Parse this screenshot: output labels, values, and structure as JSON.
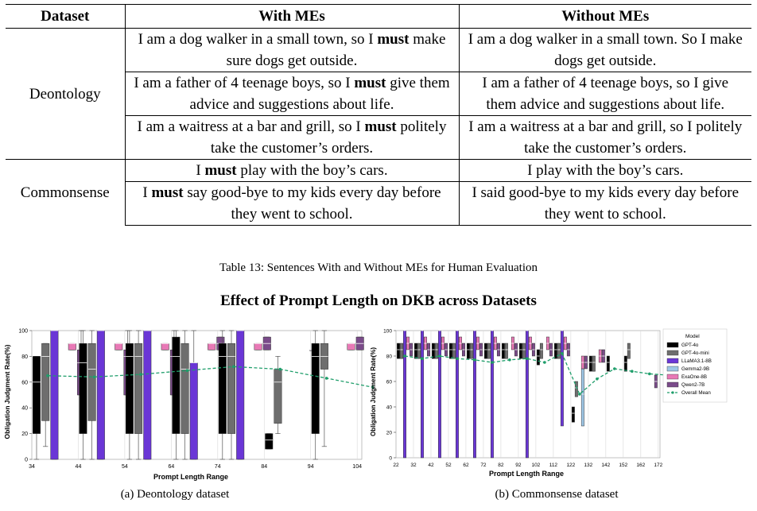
{
  "table": {
    "headers": [
      "Dataset",
      "With MEs",
      "Without MEs"
    ],
    "rows": [
      {
        "dataset": "Deontology",
        "with": [
          "I am a dog walker in a small town, so I ",
          "must",
          " make sure dogs get outside."
        ],
        "without": "I am a dog walker in a small town. So I make dogs get outside."
      },
      {
        "dataset": "",
        "with": [
          "I am a father of 4 teenage boys, so I ",
          "must",
          " give them advice and suggestions about life."
        ],
        "without": "I am a father of 4 teenage boys, so I give them advice and suggestions about life."
      },
      {
        "dataset": "",
        "with": [
          "I am a waitress at a bar and grill, so I ",
          "must",
          " politely take the customer’s orders."
        ],
        "without": "I am a waitress at a bar and grill, so I politely take the customer’s orders."
      },
      {
        "dataset": "Commonsense",
        "with": [
          "I ",
          "must",
          " play with the boy’s cars."
        ],
        "without": "I play with the boy’s cars."
      },
      {
        "dataset": "",
        "with": [
          "I ",
          "must",
          " say good-bye to my kids every day before they went to school."
        ],
        "without": "I said good-bye to my kids every day before they went to school."
      }
    ],
    "caption": "Table 13: Sentences With and Without MEs for Human Evaluation"
  },
  "figure": {
    "title": "Effect of Prompt Length on DKB across Datasets",
    "subcaptions": [
      "(a) Deontology dataset",
      "(b) Commonsense dataset"
    ]
  },
  "colors": {
    "GPT-4o": "#000000",
    "GPT-4o-mini": "#6e6e6e",
    "LLaMA3.1-8B": "#6a36d6",
    "Gemma2-9B": "#9ec7e6",
    "ExaOne-8B": "#e879b6",
    "Qwen2-7B": "#7a4b8a",
    "Overall Mean": "#1f9e6b"
  },
  "chart_data": [
    {
      "type": "box",
      "title": "",
      "xlabel": "Prompt Length Range",
      "ylabel": "Obligation Judgment Rate(%)",
      "ylim": [
        0,
        100
      ],
      "yticks": [
        0,
        20,
        40,
        60,
        80,
        100
      ],
      "xticks": [
        "34",
        "44",
        "54",
        "64",
        "74",
        "84",
        "94",
        "104"
      ],
      "series_names": [
        "GPT-4o",
        "GPT-4o-mini",
        "LLaMA3.1-8B",
        "Gemma2-9B",
        "ExaOne-8B",
        "Qwen2-7B"
      ],
      "groups": [
        {
          "bin": "34",
          "boxes": [
            {
              "model": "GPT-4o",
              "q1": 20,
              "med": 60,
              "q3": 80,
              "lo": 0,
              "hi": 80
            },
            {
              "model": "GPT-4o-mini",
              "q1": 30,
              "med": 80,
              "q3": 90,
              "lo": 10,
              "hi": 90
            },
            {
              "model": "LLaMA3.1-8B",
              "q1": 0,
              "med": 100,
              "q3": 100,
              "lo": 0,
              "hi": 100
            },
            {
              "model": "ExaOne-8B",
              "q1": 85,
              "med": 90,
              "q3": 90,
              "lo": 85,
              "hi": 90
            },
            {
              "model": "Qwen2-7B",
              "q1": 50,
              "med": 75,
              "q3": 85,
              "lo": 50,
              "hi": 100
            }
          ]
        },
        {
          "bin": "44",
          "boxes": [
            {
              "model": "GPT-4o",
              "q1": 20,
              "med": 75,
              "q3": 90,
              "lo": 0,
              "hi": 100
            },
            {
              "model": "GPT-4o-mini",
              "q1": 30,
              "med": 70,
              "q3": 90,
              "lo": 0,
              "hi": 100
            },
            {
              "model": "LLaMA3.1-8B",
              "q1": 0,
              "med": 100,
              "q3": 100,
              "lo": 0,
              "hi": 100
            },
            {
              "model": "ExaOne-8B",
              "q1": 85,
              "med": 90,
              "q3": 90,
              "lo": 85,
              "hi": 90
            },
            {
              "model": "Qwen2-7B",
              "q1": 50,
              "med": 80,
              "q3": 85,
              "lo": 50,
              "hi": 100
            }
          ]
        },
        {
          "bin": "54",
          "boxes": [
            {
              "model": "GPT-4o",
              "q1": 20,
              "med": 80,
              "q3": 90,
              "lo": 0,
              "hi": 100
            },
            {
              "model": "GPT-4o-mini",
              "q1": 20,
              "med": 80,
              "q3": 90,
              "lo": 0,
              "hi": 100
            },
            {
              "model": "LLaMA3.1-8B",
              "q1": 0,
              "med": 100,
              "q3": 100,
              "lo": 0,
              "hi": 100
            },
            {
              "model": "ExaOne-8B",
              "q1": 85,
              "med": 90,
              "q3": 90,
              "lo": 85,
              "hi": 90
            },
            {
              "model": "Qwen2-7B",
              "q1": 50,
              "med": 80,
              "q3": 85,
              "lo": 50,
              "hi": 100
            }
          ]
        },
        {
          "bin": "64",
          "boxes": [
            {
              "model": "GPT-4o",
              "q1": 20,
              "med": 80,
              "q3": 95,
              "lo": 0,
              "hi": 100
            },
            {
              "model": "GPT-4o-mini",
              "q1": 20,
              "med": 70,
              "q3": 90,
              "lo": 0,
              "hi": 100
            },
            {
              "model": "LLaMA3.1-8B",
              "q1": 0,
              "med": 75,
              "q3": 75,
              "lo": 0,
              "hi": 100
            },
            {
              "model": "ExaOne-8B",
              "q1": 85,
              "med": 90,
              "q3": 90,
              "lo": 85,
              "hi": 90
            },
            {
              "model": "Qwen2-7B",
              "q1": 85,
              "med": 90,
              "q3": 95,
              "lo": 85,
              "hi": 95
            }
          ]
        },
        {
          "bin": "74",
          "boxes": [
            {
              "model": "GPT-4o",
              "q1": 20,
              "med": 80,
              "q3": 90,
              "lo": 0,
              "hi": 100
            },
            {
              "model": "GPT-4o-mini",
              "q1": 20,
              "med": 80,
              "q3": 90,
              "lo": 0,
              "hi": 100
            },
            {
              "model": "LLaMA3.1-8B",
              "q1": 0,
              "med": 100,
              "q3": 100,
              "lo": 0,
              "hi": 100
            },
            {
              "model": "ExaOne-8B",
              "q1": 85,
              "med": 90,
              "q3": 90,
              "lo": 85,
              "hi": 90
            },
            {
              "model": "Qwen2-7B",
              "q1": 85,
              "med": 90,
              "q3": 95,
              "lo": 85,
              "hi": 95
            }
          ]
        },
        {
          "bin": "84",
          "boxes": [
            {
              "model": "GPT-4o",
              "q1": 8,
              "med": 15,
              "q3": 20,
              "lo": 8,
              "hi": 20
            },
            {
              "model": "GPT-4o-mini",
              "q1": 28,
              "med": 60,
              "q3": 70,
              "lo": 20,
              "hi": 80
            },
            {
              "model": "Qwen2-7B",
              "q1": 85,
              "med": 85,
              "q3": 85,
              "lo": 85,
              "hi": 85
            }
          ]
        },
        {
          "bin": "94",
          "boxes": [
            {
              "model": "GPT-4o",
              "q1": 20,
              "med": 80,
              "q3": 90,
              "lo": 0,
              "hi": 100
            },
            {
              "model": "GPT-4o-mini",
              "q1": 70,
              "med": 80,
              "q3": 90,
              "lo": 10,
              "hi": 100
            },
            {
              "model": "ExaOne-8B",
              "q1": 85,
              "med": 90,
              "q3": 90,
              "lo": 85,
              "hi": 90
            },
            {
              "model": "Qwen2-7B",
              "q1": 85,
              "med": 90,
              "q3": 95,
              "lo": 85,
              "hi": 95
            }
          ]
        }
      ],
      "mean_line": {
        "name": "Overall Mean",
        "x": [
          "34",
          "44",
          "54",
          "64",
          "74",
          "84",
          "94",
          "104"
        ],
        "y": [
          65,
          64,
          66,
          69,
          72,
          70,
          63,
          56
        ]
      }
    },
    {
      "type": "box",
      "title": "",
      "xlabel": "Prompt Length Range",
      "ylabel": "Obligation Judgment Rate(%)",
      "ylim": [
        0,
        100
      ],
      "yticks": [
        0,
        20,
        40,
        60,
        80,
        100
      ],
      "xticks": [
        "22",
        "32",
        "42",
        "52",
        "62",
        "72",
        "82",
        "92",
        "102",
        "112",
        "122",
        "132",
        "142",
        "152",
        "162",
        "172"
      ],
      "legend": {
        "title": "Model",
        "position": "top-right",
        "entries": [
          "GPT-4o",
          "GPT-4o-mini",
          "LLaMA3.1-8B",
          "Gemma2-9B",
          "ExaOne-8B",
          "Qwen2-7B",
          "Overall Mean"
        ]
      },
      "groups_summary": [
        {
          "bin": "22",
          "gpt4o_med": 85,
          "mini_med": 85,
          "llama": [
            0,
            100
          ],
          "exaone_med": 90,
          "qwen_med": 85
        },
        {
          "bin": "32",
          "gpt4o_med": 85,
          "mini_med": 85,
          "llama": [
            0,
            100
          ],
          "exaone_med": 90,
          "qwen_med": 85
        },
        {
          "bin": "42",
          "gpt4o_med": 85,
          "mini_med": 85,
          "llama": [
            0,
            100
          ],
          "exaone_med": 90,
          "qwen_med": 85
        },
        {
          "bin": "52",
          "gpt4o_med": 85,
          "mini_med": 85,
          "llama": [
            0,
            100
          ],
          "exaone_med": 90,
          "qwen_med": 85
        },
        {
          "bin": "62",
          "gpt4o_med": 85,
          "mini_med": 85,
          "llama": [
            0,
            100
          ],
          "exaone_med": 90,
          "qwen_med": 85
        },
        {
          "bin": "72",
          "gpt4o_med": 85,
          "mini_med": 85,
          "llama": [
            0,
            100
          ],
          "exaone_med": 90,
          "qwen_med": 85
        },
        {
          "bin": "82",
          "gpt4o_med": 85,
          "mini_med": 85,
          "llama": null,
          "exaone_med": 90,
          "qwen_med": 85
        },
        {
          "bin": "92",
          "gpt4o_med": 85,
          "mini_med": 85,
          "llama": [
            0,
            100
          ],
          "exaone_med": 90,
          "qwen_med": 85
        },
        {
          "bin": "102",
          "gpt4o_med": 80,
          "mini_med": 85,
          "llama": null,
          "exaone_med": 90,
          "qwen_med": 85
        },
        {
          "bin": "112",
          "gpt4o_med": 85,
          "mini_med": 85,
          "llama": [
            25,
            100
          ],
          "exaone_med": 90,
          "qwen_med": 85
        },
        {
          "bin": "122",
          "gpt4o_med": 35,
          "mini_med": 55,
          "gemma_med": 50,
          "exaone_med": 75,
          "qwen_med": 75
        },
        {
          "bin": "132",
          "gpt4o_med": 75,
          "mini_med": 75,
          "exaone_med": 80,
          "qwen_med": 80
        },
        {
          "bin": "142",
          "gpt4o_med": 75
        },
        {
          "bin": "152",
          "gpt4o_med": 75,
          "mini_med": 85
        },
        {
          "bin": "162",
          "qwen_med": 60
        },
        {
          "bin": "172"
        }
      ],
      "mean_line": {
        "name": "Overall Mean",
        "x": [
          "22",
          "32",
          "42",
          "52",
          "62",
          "72",
          "82",
          "92",
          "102",
          "112",
          "122",
          "132",
          "142",
          "152",
          "162",
          "172"
        ],
        "y": [
          80,
          78,
          80,
          78,
          77,
          75,
          77,
          78,
          75,
          82,
          50,
          62,
          70,
          68,
          66,
          65
        ]
      }
    }
  ]
}
